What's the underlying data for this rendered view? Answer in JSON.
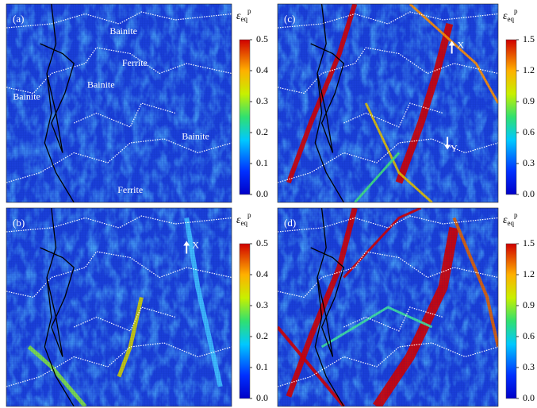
{
  "chart_data": [
    {
      "type": "heatmap",
      "panel_label": "(a)",
      "colorbar": {
        "symbol": "ε",
        "subscript": "eq",
        "superscript": "p",
        "lim": [
          0,
          0.5
        ],
        "ticks": [
          {
            "value": 0,
            "label": "0.0"
          },
          0.1,
          0.2,
          0.3,
          0.4,
          0.5
        ]
      },
      "annotations": [
        "Bainite",
        "Ferrite",
        "Bainite",
        "Bainite",
        "Bainite",
        "Ferrite"
      ]
    },
    {
      "type": "heatmap",
      "panel_label": "(b)",
      "colorbar": {
        "symbol": "ε",
        "subscript": "eq",
        "superscript": "p",
        "lim": [
          0,
          0.5
        ],
        "ticks": [
          {
            "value": 0,
            "label": "0.0"
          },
          0.1,
          0.2,
          0.3,
          0.4,
          0.5
        ]
      },
      "annotations": [
        "X"
      ]
    },
    {
      "type": "heatmap",
      "panel_label": "(c)",
      "colorbar": {
        "symbol": "ε",
        "subscript": "eq",
        "superscript": "p",
        "lim": [
          0,
          1.5
        ],
        "ticks": [
          {
            "value": 0,
            "label": "0.0"
          },
          0.3,
          0.6,
          0.9,
          1.2,
          1.5
        ]
      },
      "annotations": [
        "X",
        "Y"
      ]
    },
    {
      "type": "heatmap",
      "panel_label": "(d)",
      "colorbar": {
        "symbol": "ε",
        "subscript": "eq",
        "superscript": "p",
        "lim": [
          0,
          1.5
        ],
        "ticks": [
          {
            "value": 0,
            "label": "0.0"
          },
          0.3,
          0.6,
          0.9,
          1.2,
          1.5
        ]
      },
      "annotations": []
    }
  ]
}
